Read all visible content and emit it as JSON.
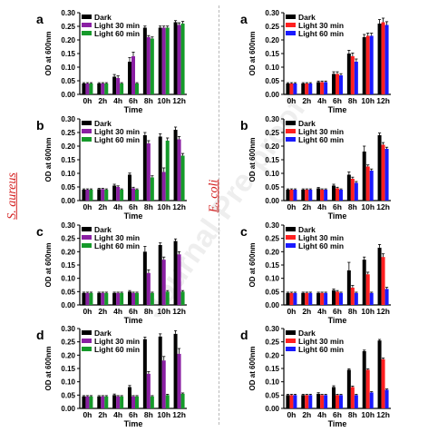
{
  "figure": {
    "left_species": "S. aureus",
    "right_species": "E. coli",
    "watermark": "Journal Pre-proof"
  },
  "colors": {
    "dark": "#000000",
    "s_aureus_light30": "#8a1fa3",
    "s_aureus_light60": "#159a2a",
    "e_coli_light30": "#ff2020",
    "e_coli_light60": "#1a1aff"
  },
  "chart_data": [
    {
      "type": "bar",
      "panel": "a",
      "organism": "S. aureus",
      "categories": [
        "0h",
        "2h",
        "4h",
        "6h",
        "8h",
        "10h",
        "12h"
      ],
      "xlabel": "Time",
      "ylabel": "OD at 600nm",
      "ylim": [
        0,
        0.3
      ],
      "yticks": [
        "0.00",
        "0.05",
        "0.10",
        "0.15",
        "0.20",
        "0.25",
        "0.30"
      ],
      "legend_position": "top-left",
      "series": [
        {
          "name": "Dark",
          "color": "#000000",
          "values": [
            0.04,
            0.04,
            0.065,
            0.12,
            0.245,
            0.245,
            0.265
          ],
          "errors": [
            0.003,
            0.003,
            0.008,
            0.015,
            0.006,
            0.006,
            0.006
          ]
        },
        {
          "name": "Light 30 min",
          "color": "#8a1fa3",
          "values": [
            0.04,
            0.04,
            0.06,
            0.14,
            0.21,
            0.245,
            0.255
          ],
          "errors": [
            0.003,
            0.003,
            0.008,
            0.015,
            0.006,
            0.006,
            0.008
          ]
        },
        {
          "name": "Light 60 min",
          "color": "#159a2a",
          "values": [
            0.04,
            0.04,
            0.04,
            0.04,
            0.205,
            0.245,
            0.26
          ],
          "errors": [
            0.003,
            0.003,
            0.003,
            0.003,
            0.006,
            0.006,
            0.008
          ]
        }
      ]
    },
    {
      "type": "bar",
      "panel": "b",
      "organism": "S. aureus",
      "categories": [
        "0h",
        "2h",
        "4h",
        "6h",
        "8h",
        "10h",
        "12h"
      ],
      "xlabel": "Time",
      "ylabel": "OD at 600nm",
      "ylim": [
        0,
        0.3
      ],
      "yticks": [
        "0.00",
        "0.05",
        "0.10",
        "0.15",
        "0.20",
        "0.25",
        "0.30"
      ],
      "legend_position": "top-left",
      "series": [
        {
          "name": "Dark",
          "color": "#000000",
          "values": [
            0.04,
            0.042,
            0.055,
            0.095,
            0.24,
            0.235,
            0.26
          ],
          "errors": [
            0.003,
            0.003,
            0.005,
            0.006,
            0.01,
            0.01,
            0.01
          ]
        },
        {
          "name": "Light 30 min",
          "color": "#8a1fa3",
          "values": [
            0.04,
            0.042,
            0.05,
            0.045,
            0.21,
            0.105,
            0.225
          ],
          "errors": [
            0.003,
            0.003,
            0.004,
            0.004,
            0.01,
            0.015,
            0.01
          ]
        },
        {
          "name": "Light 60 min",
          "color": "#159a2a",
          "values": [
            0.04,
            0.04,
            0.04,
            0.04,
            0.085,
            0.22,
            0.165
          ],
          "errors": [
            0.003,
            0.003,
            0.003,
            0.003,
            0.006,
            0.01,
            0.008
          ]
        }
      ]
    },
    {
      "type": "bar",
      "panel": "c",
      "organism": "S. aureus",
      "categories": [
        "0h",
        "2h",
        "4h",
        "6h",
        "8h",
        "10h",
        "12h"
      ],
      "xlabel": "Time",
      "ylabel": "OD at 600nm",
      "ylim": [
        0,
        0.3
      ],
      "yticks": [
        "0.00",
        "0.05",
        "0.10",
        "0.15",
        "0.20",
        "0.25",
        "0.30"
      ],
      "legend_position": "top-left",
      "series": [
        {
          "name": "Dark",
          "color": "#000000",
          "values": [
            0.045,
            0.045,
            0.045,
            0.05,
            0.2,
            0.225,
            0.24
          ],
          "errors": [
            0.003,
            0.003,
            0.003,
            0.004,
            0.02,
            0.008,
            0.008
          ]
        },
        {
          "name": "Light 30 min",
          "color": "#8a1fa3",
          "values": [
            0.045,
            0.045,
            0.045,
            0.045,
            0.12,
            0.17,
            0.19
          ],
          "errors": [
            0.003,
            0.003,
            0.003,
            0.003,
            0.012,
            0.01,
            0.01
          ]
        },
        {
          "name": "Light 60 min",
          "color": "#159a2a",
          "values": [
            0.045,
            0.045,
            0.045,
            0.045,
            0.045,
            0.05,
            0.05
          ],
          "errors": [
            0.003,
            0.003,
            0.003,
            0.003,
            0.003,
            0.004,
            0.004
          ]
        }
      ]
    },
    {
      "type": "bar",
      "panel": "d",
      "organism": "S. aureus",
      "categories": [
        "0h",
        "2h",
        "4h",
        "6h",
        "8h",
        "10h",
        "12h"
      ],
      "xlabel": "Time",
      "ylabel": "OD at 600nm",
      "ylim": [
        0,
        0.3
      ],
      "yticks": [
        "0.00",
        "0.05",
        "0.10",
        "0.15",
        "0.20",
        "0.25",
        "0.30"
      ],
      "legend_position": "top-left",
      "series": [
        {
          "name": "Dark",
          "color": "#000000",
          "values": [
            0.045,
            0.045,
            0.05,
            0.08,
            0.26,
            0.27,
            0.28
          ],
          "errors": [
            0.003,
            0.003,
            0.004,
            0.006,
            0.008,
            0.01,
            0.012
          ]
        },
        {
          "name": "Light 30 min",
          "color": "#8a1fa3",
          "values": [
            0.045,
            0.045,
            0.045,
            0.045,
            0.13,
            0.18,
            0.205
          ],
          "errors": [
            0.003,
            0.003,
            0.003,
            0.003,
            0.008,
            0.015,
            0.02
          ]
        },
        {
          "name": "Light 60 min",
          "color": "#159a2a",
          "values": [
            0.045,
            0.045,
            0.045,
            0.045,
            0.045,
            0.05,
            0.055
          ],
          "errors": [
            0.003,
            0.003,
            0.003,
            0.003,
            0.003,
            0.003,
            0.003
          ]
        }
      ]
    },
    {
      "type": "bar",
      "panel": "a",
      "organism": "E. coli",
      "categories": [
        "0h",
        "2h",
        "4h",
        "6h",
        "8h",
        "10h",
        "12h"
      ],
      "xlabel": "Time",
      "ylabel": "OD at 600nm",
      "ylim": [
        0,
        0.3
      ],
      "yticks": [
        "0.00",
        "0.05",
        "0.10",
        "0.15",
        "0.20",
        "0.25",
        "0.30"
      ],
      "legend_position": "top-left",
      "series": [
        {
          "name": "Dark",
          "color": "#000000",
          "values": [
            0.04,
            0.04,
            0.045,
            0.075,
            0.15,
            0.21,
            0.26
          ],
          "errors": [
            0.003,
            0.003,
            0.004,
            0.008,
            0.012,
            0.01,
            0.015
          ]
        },
        {
          "name": "Light 30 min",
          "color": "#ff2020",
          "values": [
            0.04,
            0.04,
            0.045,
            0.075,
            0.14,
            0.215,
            0.265
          ],
          "errors": [
            0.003,
            0.003,
            0.004,
            0.008,
            0.012,
            0.01,
            0.015
          ]
        },
        {
          "name": "Light 60 min",
          "color": "#1a1aff",
          "values": [
            0.04,
            0.04,
            0.045,
            0.07,
            0.12,
            0.215,
            0.255
          ],
          "errors": [
            0.003,
            0.003,
            0.004,
            0.006,
            0.01,
            0.01,
            0.012
          ]
        }
      ]
    },
    {
      "type": "bar",
      "panel": "b",
      "organism": "E. coli",
      "categories": [
        "0h",
        "2h",
        "4h",
        "6h",
        "8h",
        "10h",
        "12h"
      ],
      "xlabel": "Time",
      "ylabel": "OD at 600nm",
      "ylim": [
        0,
        0.3
      ],
      "yticks": [
        "0.00",
        "0.05",
        "0.10",
        "0.15",
        "0.20",
        "0.25",
        "0.30"
      ],
      "legend_position": "top-left",
      "series": [
        {
          "name": "Dark",
          "color": "#000000",
          "values": [
            0.04,
            0.04,
            0.045,
            0.055,
            0.095,
            0.18,
            0.24
          ],
          "errors": [
            0.003,
            0.003,
            0.003,
            0.005,
            0.01,
            0.02,
            0.008
          ]
        },
        {
          "name": "Light 30 min",
          "color": "#ff2020",
          "values": [
            0.04,
            0.04,
            0.04,
            0.045,
            0.08,
            0.125,
            0.205
          ],
          "errors": [
            0.003,
            0.003,
            0.003,
            0.004,
            0.006,
            0.006,
            0.008
          ]
        },
        {
          "name": "Light 60 min",
          "color": "#1a1aff",
          "values": [
            0.04,
            0.04,
            0.04,
            0.04,
            0.065,
            0.11,
            0.19
          ],
          "errors": [
            0.003,
            0.003,
            0.003,
            0.003,
            0.005,
            0.006,
            0.006
          ]
        }
      ]
    },
    {
      "type": "bar",
      "panel": "c",
      "organism": "E. coli",
      "categories": [
        "0h",
        "2h",
        "4h",
        "6h",
        "8h",
        "10h",
        "12h"
      ],
      "xlabel": "Time",
      "ylabel": "OD at 600nm",
      "ylim": [
        0,
        0.3
      ],
      "yticks": [
        "0.00",
        "0.05",
        "0.10",
        "0.15",
        "0.20",
        "0.25",
        "0.30"
      ],
      "legend_position": "top-left",
      "series": [
        {
          "name": "Dark",
          "color": "#000000",
          "values": [
            0.045,
            0.045,
            0.045,
            0.055,
            0.13,
            0.17,
            0.215
          ],
          "errors": [
            0.003,
            0.003,
            0.003,
            0.005,
            0.03,
            0.01,
            0.012
          ]
        },
        {
          "name": "Light 30 min",
          "color": "#ff2020",
          "values": [
            0.045,
            0.045,
            0.045,
            0.05,
            0.065,
            0.115,
            0.18
          ],
          "errors": [
            0.003,
            0.003,
            0.003,
            0.004,
            0.008,
            0.008,
            0.012
          ]
        },
        {
          "name": "Light 60 min",
          "color": "#1a1aff",
          "values": [
            0.045,
            0.045,
            0.045,
            0.045,
            0.045,
            0.045,
            0.06
          ],
          "errors": [
            0.003,
            0.003,
            0.003,
            0.003,
            0.003,
            0.003,
            0.006
          ]
        }
      ]
    },
    {
      "type": "bar",
      "panel": "d",
      "organism": "E. coli",
      "categories": [
        "0h",
        "2h",
        "4h",
        "6h",
        "8h",
        "10h",
        "12h"
      ],
      "xlabel": "Time",
      "ylabel": "OD at 600nm",
      "ylim": [
        0,
        0.3
      ],
      "yticks": [
        "0.00",
        "0.05",
        "0.10",
        "0.15",
        "0.20",
        "0.25",
        "0.30"
      ],
      "legend_position": "top-left",
      "series": [
        {
          "name": "Dark",
          "color": "#000000",
          "values": [
            0.05,
            0.05,
            0.055,
            0.08,
            0.145,
            0.215,
            0.255
          ],
          "errors": [
            0.003,
            0.003,
            0.004,
            0.005,
            0.004,
            0.004,
            0.004
          ]
        },
        {
          "name": "Light 30 min",
          "color": "#ff2020",
          "values": [
            0.05,
            0.05,
            0.05,
            0.05,
            0.08,
            0.145,
            0.185
          ],
          "errors": [
            0.003,
            0.003,
            0.003,
            0.003,
            0.004,
            0.004,
            0.004
          ]
        },
        {
          "name": "Light 60 min",
          "color": "#1a1aff",
          "values": [
            0.05,
            0.05,
            0.05,
            0.05,
            0.05,
            0.06,
            0.07
          ],
          "errors": [
            0.003,
            0.003,
            0.003,
            0.003,
            0.003,
            0.003,
            0.003
          ]
        }
      ]
    }
  ]
}
